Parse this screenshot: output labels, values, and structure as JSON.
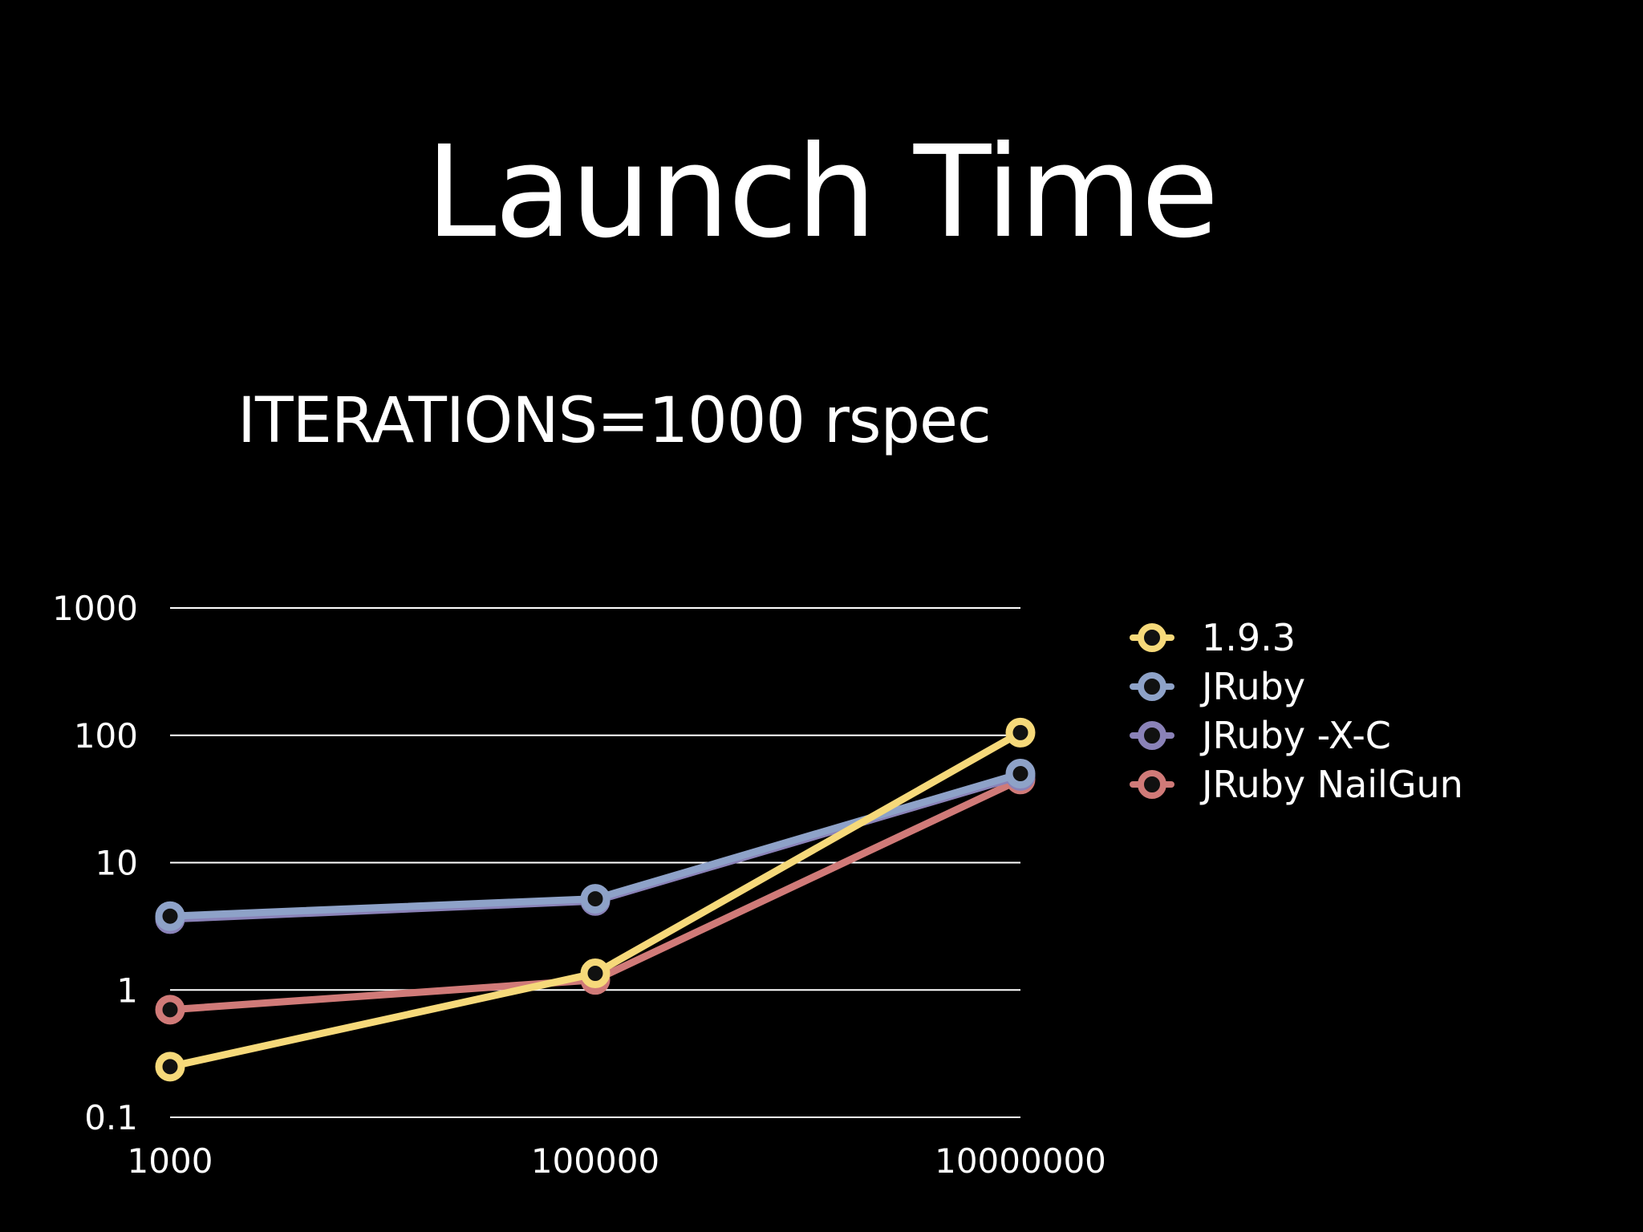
{
  "slide": {
    "title": "Launch Time",
    "subtitle": "ITERATIONS=1000 rspec"
  },
  "chart_data": {
    "type": "line",
    "x_scale": "log",
    "y_scale": "log",
    "x": [
      1000,
      100000,
      10000000
    ],
    "x_tick_labels": [
      "1000",
      "100000",
      "10000000"
    ],
    "y_ticks": [
      0.1,
      1,
      10,
      100,
      1000
    ],
    "y_tick_labels": [
      "0.1",
      "1",
      "10",
      "100",
      "1000"
    ],
    "ylim": [
      0.1,
      1000
    ],
    "grid": "horizontal",
    "legend_position": "right",
    "series": [
      {
        "name": "1.9.3",
        "color": "#f6d97a",
        "values": [
          0.25,
          1.35,
          105
        ]
      },
      {
        "name": "JRuby",
        "color": "#8ea2c8",
        "values": [
          3.8,
          5.2,
          50
        ]
      },
      {
        "name": "JRuby -X-C",
        "color": "#8a82b8",
        "values": [
          3.6,
          5.0,
          48
        ]
      },
      {
        "name": "JRuby NailGun",
        "color": "#d07a78",
        "values": [
          0.7,
          1.2,
          45
        ]
      }
    ]
  }
}
